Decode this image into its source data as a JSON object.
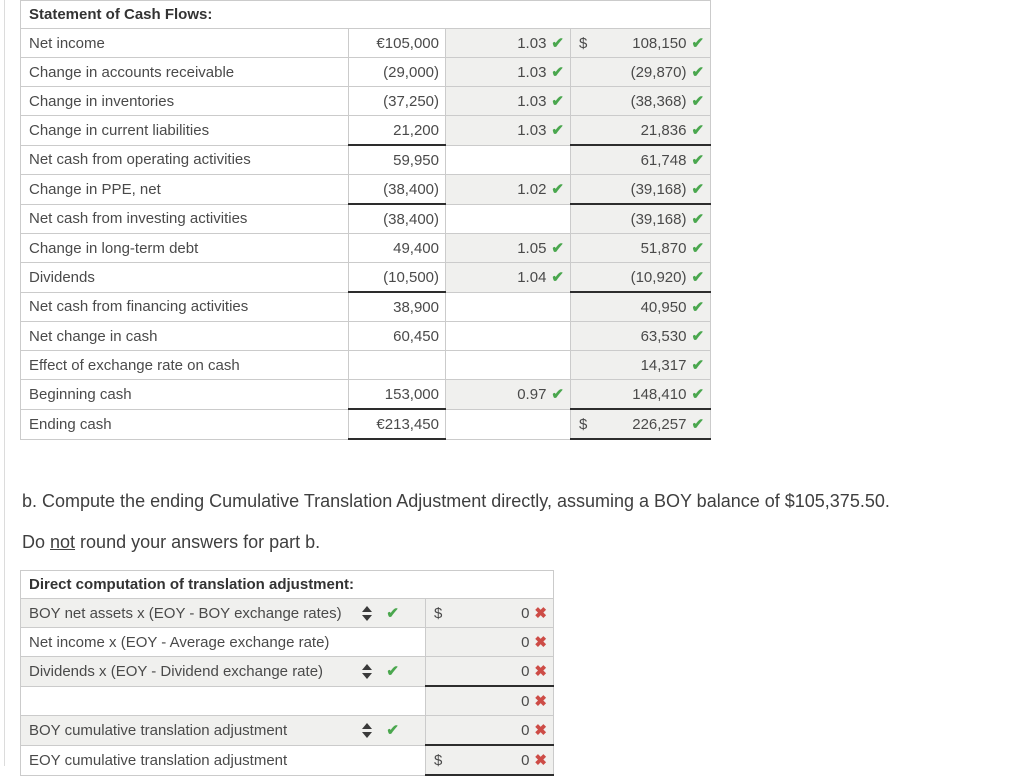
{
  "page": {
    "section_b_text": "b. Compute the ending Cumulative Translation Adjustment directly, assuming a BOY balance of $105,375.50.",
    "note": {
      "before": "Do ",
      "underlined": "not",
      "after": " round your answers for part b."
    }
  },
  "colors": {
    "correct_green": "#4aa74e",
    "incorrect_red": "#cd4c46",
    "input_cell_bg": "#f0f0ee",
    "grid_border": "#cbcbcb",
    "subtotal_rule": "#2d2d2d"
  },
  "icons": {
    "correct": "correct-check-icon",
    "incorrect": "incorrect-x-icon",
    "dropdown": "select-arrows-icon"
  },
  "cash_flow_table": {
    "title": "Statement of Cash Flows:",
    "rows": [
      {
        "label": "Net income",
        "local": "€105,000",
        "rate": "1.03",
        "rate_check": true,
        "usd_prefix": "$",
        "usd": "108,150",
        "usd_check": true
      },
      {
        "label": "Change in accounts receivable",
        "local": "(29,000)",
        "rate": "1.03",
        "rate_check": true,
        "usd_prefix": "",
        "usd": "(29,870)",
        "usd_check": true
      },
      {
        "label": "Change in inventories",
        "local": "(37,250)",
        "rate": "1.03",
        "rate_check": true,
        "usd_prefix": "",
        "usd": "(38,368)",
        "usd_check": true
      },
      {
        "label": "Change in current liabilities",
        "local": "21,200",
        "rate": "1.03",
        "rate_check": true,
        "usd_prefix": "",
        "usd": "21,836",
        "usd_check": true,
        "local_underline": true,
        "usd_underline": true
      },
      {
        "label": "Net cash from operating activities",
        "local": "59,950",
        "rate": "",
        "rate_check": false,
        "usd_prefix": "",
        "usd": "61,748",
        "usd_check": true
      },
      {
        "label": "Change in PPE, net",
        "local": "(38,400)",
        "rate": "1.02",
        "rate_check": true,
        "usd_prefix": "",
        "usd": "(39,168)",
        "usd_check": true,
        "local_underline": true,
        "usd_underline": true
      },
      {
        "label": "Net cash from investing activities",
        "local": "(38,400)",
        "rate": "",
        "rate_check": false,
        "usd_prefix": "",
        "usd": "(39,168)",
        "usd_check": true
      },
      {
        "label": "Change in long-term debt",
        "local": "49,400",
        "rate": "1.05",
        "rate_check": true,
        "usd_prefix": "",
        "usd": "51,870",
        "usd_check": true
      },
      {
        "label": "Dividends",
        "local": "(10,500)",
        "rate": "1.04",
        "rate_check": true,
        "usd_prefix": "",
        "usd": "(10,920)",
        "usd_check": true,
        "local_underline": true,
        "usd_underline": true
      },
      {
        "label": "Net cash from financing activities",
        "local": "38,900",
        "rate": "",
        "rate_check": false,
        "usd_prefix": "",
        "usd": "40,950",
        "usd_check": true
      },
      {
        "label": "Net change in cash",
        "local": "60,450",
        "rate": "",
        "rate_check": false,
        "usd_prefix": "",
        "usd": "63,530",
        "usd_check": true
      },
      {
        "label": "Effect of exchange rate on cash",
        "local": "",
        "rate": "",
        "rate_check": false,
        "usd_prefix": "",
        "usd": "14,317",
        "usd_check": true
      },
      {
        "label": "Beginning cash",
        "local": "153,000",
        "rate": "0.97",
        "rate_check": true,
        "usd_prefix": "",
        "usd": "148,410",
        "usd_check": true,
        "local_underline": true,
        "usd_underline": true
      },
      {
        "label": "Ending cash",
        "local": "€213,450",
        "rate": "",
        "rate_check": false,
        "usd_prefix": "$",
        "usd": "226,257",
        "usd_check": true,
        "local_underline": true,
        "usd_underline": true
      }
    ]
  },
  "adjustment_table": {
    "title": "Direct computation of translation adjustment:",
    "rows": [
      {
        "label": "BOY net assets x (EOY - BOY exchange rates)",
        "dropdown": true,
        "label_check": true,
        "shaded": true,
        "value_prefix": "$",
        "value": "0",
        "value_incorrect": true
      },
      {
        "label": "Net income x (EOY - Average exchange rate)",
        "dropdown": false,
        "label_check": false,
        "shaded": false,
        "value_prefix": "",
        "value": "0",
        "value_incorrect": true
      },
      {
        "label": "Dividends x (EOY - Dividend exchange rate)",
        "dropdown": true,
        "label_check": true,
        "shaded": true,
        "value_prefix": "",
        "value": "0",
        "value_incorrect": true,
        "value_underline": true
      },
      {
        "label": "",
        "dropdown": false,
        "label_check": false,
        "shaded": false,
        "value_prefix": "",
        "value": "0",
        "value_incorrect": true
      },
      {
        "label": "BOY cumulative translation adjustment",
        "dropdown": true,
        "label_check": true,
        "shaded": true,
        "value_prefix": "",
        "value": "0",
        "value_incorrect": true,
        "value_underline": true
      },
      {
        "label": "EOY cumulative translation adjustment",
        "dropdown": false,
        "label_check": false,
        "shaded": false,
        "value_prefix": "$",
        "value": "0",
        "value_incorrect": true,
        "value_underline": true
      }
    ]
  }
}
